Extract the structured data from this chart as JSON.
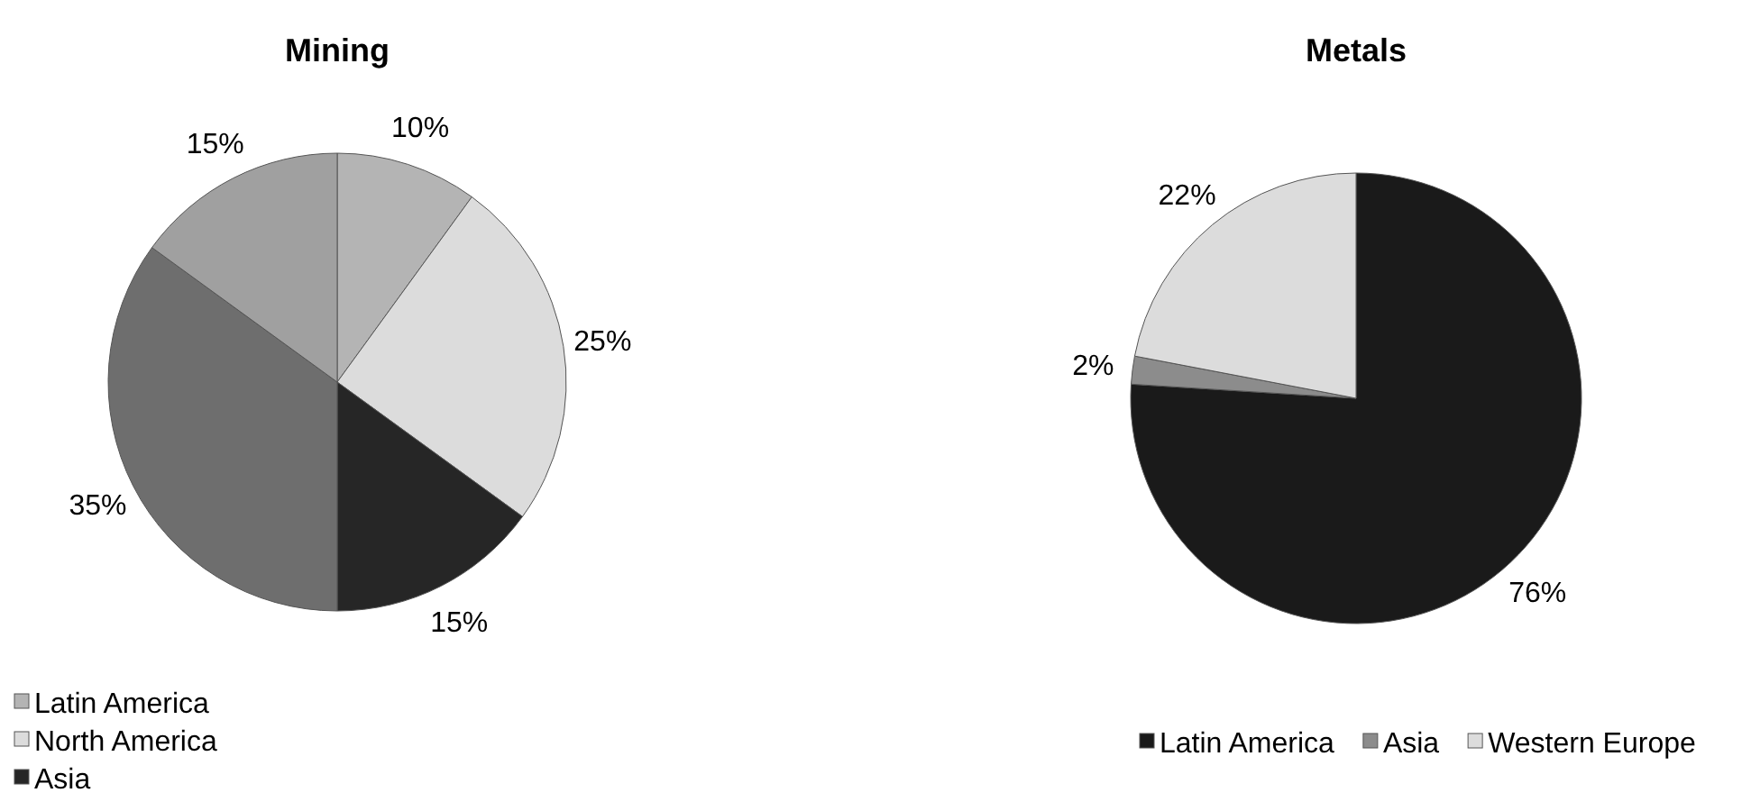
{
  "chart_data": [
    {
      "type": "pie",
      "title": "Mining",
      "categories": [
        "Latin America",
        "North America",
        "Asia",
        null,
        null
      ],
      "values": [
        10,
        25,
        15,
        35,
        15
      ],
      "value_labels": [
        "10%",
        "25%",
        "15%",
        "35%",
        "15%"
      ],
      "colors": [
        "#b4b4b4",
        "#dcdcdc",
        "#262626",
        "#6e6e6e",
        "#a0a0a0"
      ],
      "legend": "bottom left"
    },
    {
      "type": "pie",
      "title": "Metals",
      "categories": [
        "Latin America",
        "Asia",
        "Western Europe"
      ],
      "values": [
        76,
        2,
        22
      ],
      "value_labels": [
        "76%",
        "2%",
        "22%"
      ],
      "colors": [
        "#1a1a1a",
        "#8c8c8c",
        "#dcdcdc"
      ],
      "legend": "bottom"
    }
  ]
}
